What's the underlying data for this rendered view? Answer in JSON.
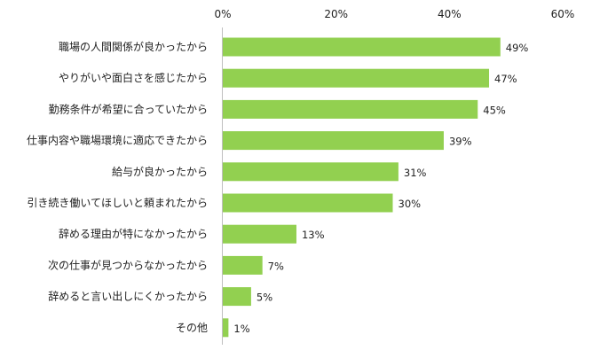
{
  "chart_data": {
    "type": "bar",
    "orientation": "horizontal",
    "categories": [
      "職場の人間関係が良かったから",
      "やりがいや面白さを感じたから",
      "勤務条件が希望に合っていたから",
      "仕事内容や職場環境に適応できたから",
      "給与が良かったから",
      "引き続き働いてほしいと頼まれたから",
      "辞める理由が特になかったから",
      "次の仕事が見つからなかったから",
      "辞めると言い出しにくかったから",
      "その他"
    ],
    "values": [
      49,
      47,
      45,
      39,
      31,
      30,
      13,
      7,
      5,
      1
    ],
    "value_labels": [
      "49%",
      "47%",
      "45%",
      "39%",
      "31%",
      "30%",
      "13%",
      "7%",
      "5%",
      "1%"
    ],
    "xlim": [
      0,
      60
    ],
    "ticks": [
      0,
      20,
      40,
      60
    ],
    "tick_labels": [
      "0%",
      "20%",
      "40%",
      "60%"
    ],
    "axis_position": "top",
    "grid": false,
    "legend": false,
    "bar_color": "#92d050"
  }
}
